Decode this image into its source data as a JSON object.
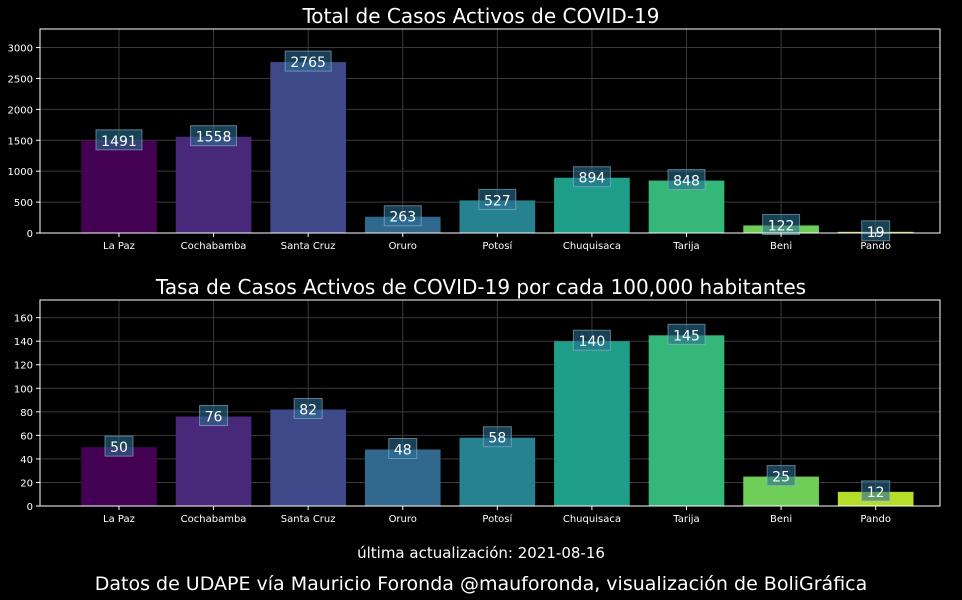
{
  "chart_data": [
    {
      "type": "bar",
      "title": "Total de Casos Activos de COVID-19",
      "categories": [
        "La Paz",
        "Cochabamba",
        "Santa Cruz",
        "Oruro",
        "Potosí",
        "Chuquisaca",
        "Tarija",
        "Beni",
        "Pando"
      ],
      "values": [
        1491,
        1558,
        2765,
        263,
        527,
        894,
        848,
        122,
        19
      ],
      "colors": [
        "#440154",
        "#482878",
        "#3e4989",
        "#31688e",
        "#26828e",
        "#1f9e89",
        "#35b779",
        "#6ece58",
        "#b5de2b"
      ],
      "ylim": [
        0,
        3300
      ],
      "yticks": [
        0,
        500,
        1000,
        1500,
        2000,
        2500,
        3000
      ],
      "xlabel": "",
      "ylabel": "",
      "grid": true
    },
    {
      "type": "bar",
      "title": "Tasa de Casos Activos de COVID-19 por cada 100,000 habitantes",
      "categories": [
        "La Paz",
        "Cochabamba",
        "Santa Cruz",
        "Oruro",
        "Potosí",
        "Chuquisaca",
        "Tarija",
        "Beni",
        "Pando"
      ],
      "values": [
        50,
        76,
        82,
        48,
        58,
        140,
        145,
        25,
        12
      ],
      "colors": [
        "#440154",
        "#482878",
        "#3e4989",
        "#31688e",
        "#26828e",
        "#1f9e89",
        "#35b779",
        "#6ece58",
        "#b5de2b"
      ],
      "ylim": [
        0,
        175
      ],
      "yticks": [
        0,
        20,
        40,
        60,
        80,
        100,
        120,
        140,
        160
      ],
      "xlabel": "",
      "ylabel": "",
      "grid": true
    }
  ],
  "footer": {
    "updated": "última actualización: 2021-08-16",
    "credits": "Datos de UDAPE vía Mauricio Foronda @mauforonda, visualización de BoliGráfica"
  }
}
